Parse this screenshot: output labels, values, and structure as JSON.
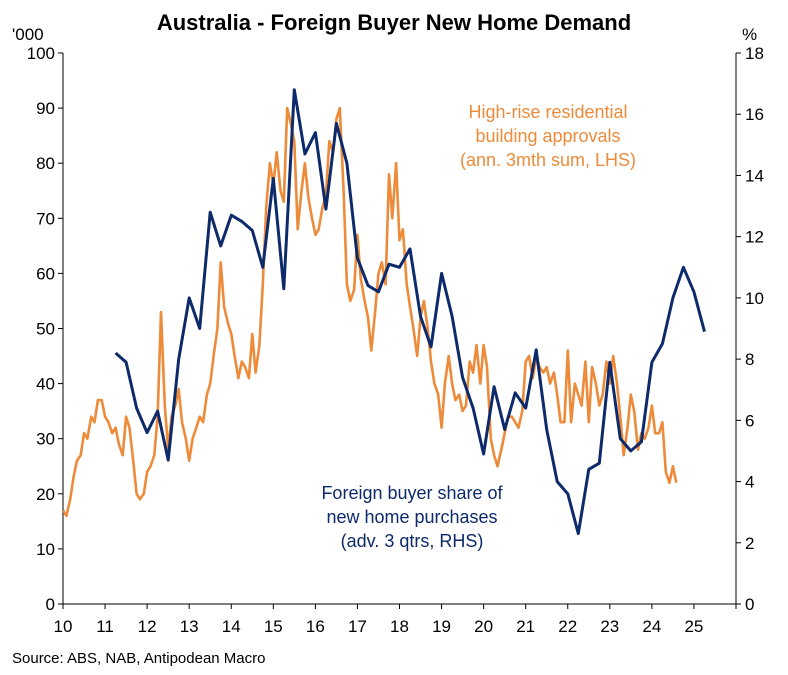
{
  "chart_data": {
    "type": "line",
    "title": "Australia - Foreign Buyer New Home Demand",
    "left_unit": "'000",
    "right_unit": "%",
    "x_ticks": [
      "10",
      "11",
      "12",
      "13",
      "14",
      "15",
      "16",
      "17",
      "18",
      "19",
      "20",
      "21",
      "22",
      "23",
      "24",
      "25"
    ],
    "x_range": [
      2010,
      2026
    ],
    "ylim_left": [
      0,
      100
    ],
    "ylim_right": [
      0,
      18
    ],
    "yticks_left": [
      "0",
      "10",
      "20",
      "30",
      "40",
      "50",
      "60",
      "70",
      "80",
      "90",
      "100"
    ],
    "yticks_right": [
      "0",
      "2",
      "4",
      "6",
      "8",
      "10",
      "12",
      "14",
      "16",
      "18"
    ],
    "source": "Source: ABS, NAB, Antipodean Macro",
    "colors": {
      "high_rise": "#ED8B3A",
      "foreign_share": "#0D2A6B"
    },
    "annotations": {
      "high_rise": [
        "High-rise residential",
        "building approvals",
        "(ann. 3mth sum, LHS)"
      ],
      "foreign_share": [
        "Foreign buyer share of",
        "new home purchases",
        "(adv. 3 qtrs, RHS)"
      ]
    },
    "series": [
      {
        "axis": "left",
        "points": [
          [
            2010.0,
            17
          ],
          [
            2010.08,
            16
          ],
          [
            2010.17,
            19
          ],
          [
            2010.25,
            23
          ],
          [
            2010.33,
            26
          ],
          [
            2010.42,
            27
          ],
          [
            2010.5,
            31
          ],
          [
            2010.58,
            30
          ],
          [
            2010.67,
            34
          ],
          [
            2010.75,
            33
          ],
          [
            2010.83,
            37
          ],
          [
            2010.92,
            37
          ],
          [
            2011.0,
            34
          ],
          [
            2011.08,
            33
          ],
          [
            2011.17,
            31
          ],
          [
            2011.25,
            32
          ],
          [
            2011.33,
            29
          ],
          [
            2011.42,
            27
          ],
          [
            2011.5,
            34
          ],
          [
            2011.58,
            32
          ],
          [
            2011.67,
            26
          ],
          [
            2011.75,
            20
          ],
          [
            2011.83,
            19
          ],
          [
            2011.92,
            20
          ],
          [
            2012.0,
            24
          ],
          [
            2012.08,
            25
          ],
          [
            2012.17,
            27
          ],
          [
            2012.25,
            34
          ],
          [
            2012.33,
            53
          ],
          [
            2012.42,
            36
          ],
          [
            2012.5,
            28
          ],
          [
            2012.58,
            34
          ],
          [
            2012.67,
            36
          ],
          [
            2012.75,
            39
          ],
          [
            2012.83,
            33
          ],
          [
            2012.92,
            30
          ],
          [
            2013.0,
            26
          ],
          [
            2013.08,
            30
          ],
          [
            2013.17,
            32
          ],
          [
            2013.25,
            34
          ],
          [
            2013.33,
            33
          ],
          [
            2013.42,
            38
          ],
          [
            2013.5,
            40
          ],
          [
            2013.58,
            45
          ],
          [
            2013.67,
            50
          ],
          [
            2013.75,
            62
          ],
          [
            2013.83,
            54
          ],
          [
            2013.92,
            51
          ],
          [
            2014.0,
            49
          ],
          [
            2014.08,
            45
          ],
          [
            2014.17,
            41
          ],
          [
            2014.25,
            44
          ],
          [
            2014.33,
            43
          ],
          [
            2014.42,
            41
          ],
          [
            2014.5,
            49
          ],
          [
            2014.58,
            42
          ],
          [
            2014.67,
            47
          ],
          [
            2014.75,
            58
          ],
          [
            2014.83,
            72
          ],
          [
            2014.92,
            80
          ],
          [
            2015.0,
            76
          ],
          [
            2015.08,
            82
          ],
          [
            2015.17,
            75
          ],
          [
            2015.25,
            73
          ],
          [
            2015.33,
            90
          ],
          [
            2015.42,
            87
          ],
          [
            2015.5,
            84
          ],
          [
            2015.58,
            68
          ],
          [
            2015.67,
            75
          ],
          [
            2015.75,
            80
          ],
          [
            2015.83,
            74
          ],
          [
            2015.92,
            70
          ],
          [
            2016.0,
            67
          ],
          [
            2016.08,
            68
          ],
          [
            2016.17,
            72
          ],
          [
            2016.25,
            74
          ],
          [
            2016.33,
            84
          ],
          [
            2016.42,
            82
          ],
          [
            2016.5,
            88
          ],
          [
            2016.58,
            90
          ],
          [
            2016.67,
            75
          ],
          [
            2016.75,
            58
          ],
          [
            2016.83,
            55
          ],
          [
            2016.92,
            57
          ],
          [
            2017.0,
            67
          ],
          [
            2017.08,
            59
          ],
          [
            2017.17,
            55
          ],
          [
            2017.25,
            52
          ],
          [
            2017.33,
            46
          ],
          [
            2017.42,
            53
          ],
          [
            2017.5,
            60
          ],
          [
            2017.58,
            62
          ],
          [
            2017.67,
            58
          ],
          [
            2017.75,
            78
          ],
          [
            2017.83,
            70
          ],
          [
            2017.92,
            80
          ],
          [
            2018.0,
            66
          ],
          [
            2018.08,
            68
          ],
          [
            2018.17,
            58
          ],
          [
            2018.25,
            54
          ],
          [
            2018.33,
            50
          ],
          [
            2018.42,
            45
          ],
          [
            2018.5,
            52
          ],
          [
            2018.58,
            55
          ],
          [
            2018.67,
            50
          ],
          [
            2018.75,
            44
          ],
          [
            2018.83,
            40
          ],
          [
            2018.92,
            38
          ],
          [
            2019.0,
            32
          ],
          [
            2019.08,
            40
          ],
          [
            2019.17,
            45
          ],
          [
            2019.25,
            40
          ],
          [
            2019.33,
            37
          ],
          [
            2019.42,
            38
          ],
          [
            2019.5,
            35
          ],
          [
            2019.58,
            36
          ],
          [
            2019.67,
            44
          ],
          [
            2019.75,
            42
          ],
          [
            2019.83,
            47
          ],
          [
            2019.92,
            40
          ],
          [
            2020.0,
            47
          ],
          [
            2020.08,
            43
          ],
          [
            2020.17,
            30
          ],
          [
            2020.25,
            27
          ],
          [
            2020.33,
            25
          ],
          [
            2020.42,
            28
          ],
          [
            2020.5,
            31
          ],
          [
            2020.58,
            34
          ],
          [
            2020.67,
            34
          ],
          [
            2020.75,
            33
          ],
          [
            2020.83,
            32
          ],
          [
            2020.92,
            35
          ],
          [
            2021.0,
            44
          ],
          [
            2021.08,
            45
          ],
          [
            2021.17,
            41
          ],
          [
            2021.25,
            45
          ],
          [
            2021.33,
            43
          ],
          [
            2021.42,
            42
          ],
          [
            2021.5,
            43
          ],
          [
            2021.58,
            40
          ],
          [
            2021.67,
            42
          ],
          [
            2021.75,
            38
          ],
          [
            2021.83,
            33
          ],
          [
            2021.92,
            33
          ],
          [
            2022.0,
            46
          ],
          [
            2022.08,
            33
          ],
          [
            2022.17,
            40
          ],
          [
            2022.25,
            38
          ],
          [
            2022.33,
            36
          ],
          [
            2022.42,
            44
          ],
          [
            2022.5,
            33
          ],
          [
            2022.58,
            43
          ],
          [
            2022.67,
            40
          ],
          [
            2022.75,
            36
          ],
          [
            2022.83,
            38
          ],
          [
            2022.92,
            44
          ],
          [
            2023.0,
            40
          ],
          [
            2023.08,
            45
          ],
          [
            2023.17,
            40
          ],
          [
            2023.25,
            34
          ],
          [
            2023.33,
            27
          ],
          [
            2023.42,
            32
          ],
          [
            2023.5,
            38
          ],
          [
            2023.58,
            35
          ],
          [
            2023.67,
            28
          ],
          [
            2023.75,
            31
          ],
          [
            2023.83,
            30
          ],
          [
            2023.92,
            32
          ],
          [
            2024.0,
            36
          ],
          [
            2024.08,
            31
          ],
          [
            2024.17,
            31
          ],
          [
            2024.25,
            33
          ],
          [
            2024.33,
            24
          ],
          [
            2024.42,
            22
          ],
          [
            2024.5,
            25
          ],
          [
            2024.58,
            22
          ]
        ]
      },
      {
        "axis": "right",
        "points": [
          [
            2011.25,
            8.2
          ],
          [
            2011.5,
            7.9
          ],
          [
            2011.75,
            6.4
          ],
          [
            2012.0,
            5.6
          ],
          [
            2012.25,
            6.3
          ],
          [
            2012.5,
            4.7
          ],
          [
            2012.75,
            8.0
          ],
          [
            2013.0,
            10.0
          ],
          [
            2013.25,
            9.0
          ],
          [
            2013.5,
            12.8
          ],
          [
            2013.75,
            11.7
          ],
          [
            2014.0,
            12.7
          ],
          [
            2014.25,
            12.5
          ],
          [
            2014.5,
            12.2
          ],
          [
            2014.75,
            11.0
          ],
          [
            2015.0,
            13.9
          ],
          [
            2015.25,
            10.3
          ],
          [
            2015.5,
            16.8
          ],
          [
            2015.75,
            14.7
          ],
          [
            2016.0,
            15.4
          ],
          [
            2016.25,
            12.9
          ],
          [
            2016.5,
            15.7
          ],
          [
            2016.75,
            14.4
          ],
          [
            2017.0,
            11.3
          ],
          [
            2017.25,
            10.4
          ],
          [
            2017.5,
            10.2
          ],
          [
            2017.75,
            11.1
          ],
          [
            2018.0,
            11.0
          ],
          [
            2018.25,
            11.6
          ],
          [
            2018.5,
            9.4
          ],
          [
            2018.75,
            8.4
          ],
          [
            2019.0,
            10.8
          ],
          [
            2019.25,
            9.4
          ],
          [
            2019.5,
            7.4
          ],
          [
            2019.75,
            6.4
          ],
          [
            2020.0,
            4.9
          ],
          [
            2020.25,
            7.1
          ],
          [
            2020.5,
            5.7
          ],
          [
            2020.75,
            6.9
          ],
          [
            2021.0,
            6.4
          ],
          [
            2021.25,
            8.3
          ],
          [
            2021.5,
            5.7
          ],
          [
            2021.75,
            4.0
          ],
          [
            2022.0,
            3.6
          ],
          [
            2022.25,
            2.3
          ],
          [
            2022.5,
            4.4
          ],
          [
            2022.75,
            4.6
          ],
          [
            2023.0,
            7.9
          ],
          [
            2023.25,
            5.4
          ],
          [
            2023.5,
            5.0
          ],
          [
            2023.75,
            5.3
          ],
          [
            2024.0,
            7.9
          ],
          [
            2024.25,
            8.5
          ],
          [
            2024.5,
            10.0
          ],
          [
            2024.75,
            11.0
          ],
          [
            2025.0,
            10.2
          ],
          [
            2025.25,
            8.9
          ]
        ]
      }
    ]
  }
}
